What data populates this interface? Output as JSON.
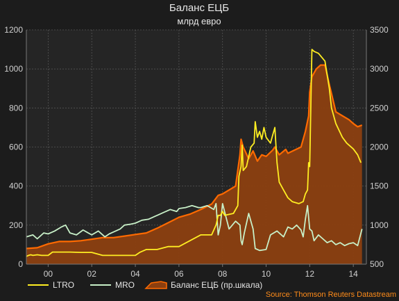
{
  "colors": {
    "background": "#1c1c1c",
    "plot_background": "#252525",
    "ltro": "#ffee22",
    "mro": "#c8f0c8",
    "balance_fill": "#8b3f10",
    "balance_line": "#ff6a00",
    "source": "#ff8c1a"
  },
  "chart_data": {
    "type": "line",
    "title": "Баланс ЕЦБ",
    "subtitle": "млрд евро",
    "source": "Source: Thomson Reuters Datastream",
    "x_tick_labels": [
      "00",
      "02",
      "04",
      "06",
      "08",
      "10",
      "12",
      "14"
    ],
    "x_tick_values": [
      2000,
      2002,
      2004,
      2006,
      2008,
      2010,
      2012,
      2014
    ],
    "xlim": [
      1999,
      2014.6
    ],
    "ylim_left": [
      0,
      1200
    ],
    "y_ticks_left": [
      0,
      200,
      400,
      600,
      800,
      1000,
      1200
    ],
    "ylim_right": [
      500,
      3500
    ],
    "y_ticks_right": [
      500,
      1000,
      1500,
      2000,
      2500,
      3000,
      3500
    ],
    "grid": true,
    "legend_position": "bottom-left",
    "series": [
      {
        "name": "LTRO",
        "axis": "left",
        "type": "line",
        "points": [
          [
            1999.0,
            40
          ],
          [
            1999.1,
            45
          ],
          [
            1999.2,
            48
          ],
          [
            1999.3,
            45
          ],
          [
            1999.5,
            48
          ],
          [
            1999.7,
            45
          ],
          [
            2000.0,
            45
          ],
          [
            2000.2,
            62
          ],
          [
            2000.5,
            62
          ],
          [
            2001.0,
            62
          ],
          [
            2001.5,
            60
          ],
          [
            2002.0,
            60
          ],
          [
            2002.5,
            45
          ],
          [
            2003.0,
            45
          ],
          [
            2003.5,
            45
          ],
          [
            2004.0,
            45
          ],
          [
            2004.2,
            60
          ],
          [
            2004.5,
            75
          ],
          [
            2005.0,
            75
          ],
          [
            2005.5,
            90
          ],
          [
            2006.0,
            90
          ],
          [
            2006.5,
            120
          ],
          [
            2007.0,
            150
          ],
          [
            2007.5,
            150
          ],
          [
            2007.7,
            200
          ],
          [
            2007.8,
            250
          ],
          [
            2007.9,
            250
          ],
          [
            2008.0,
            270
          ],
          [
            2008.1,
            250
          ],
          [
            2008.5,
            260
          ],
          [
            2008.7,
            300
          ],
          [
            2008.75,
            450
          ],
          [
            2008.85,
            500
          ],
          [
            2008.9,
            610
          ],
          [
            2008.95,
            480
          ],
          [
            2009.1,
            500
          ],
          [
            2009.3,
            600
          ],
          [
            2009.45,
            620
          ],
          [
            2009.5,
            730
          ],
          [
            2009.6,
            650
          ],
          [
            2009.7,
            680
          ],
          [
            2009.8,
            640
          ],
          [
            2009.9,
            700
          ],
          [
            2010.0,
            650
          ],
          [
            2010.2,
            620
          ],
          [
            2010.3,
            660
          ],
          [
            2010.4,
            700
          ],
          [
            2010.5,
            520
          ],
          [
            2010.6,
            420
          ],
          [
            2010.8,
            380
          ],
          [
            2011.0,
            340
          ],
          [
            2011.2,
            320
          ],
          [
            2011.5,
            310
          ],
          [
            2011.7,
            320
          ],
          [
            2011.8,
            360
          ],
          [
            2011.9,
            380
          ],
          [
            2011.95,
            520
          ],
          [
            2012.0,
            500
          ],
          [
            2012.1,
            1100
          ],
          [
            2012.2,
            1090
          ],
          [
            2012.4,
            1080
          ],
          [
            2012.7,
            1040
          ],
          [
            2012.9,
            900
          ],
          [
            2013.0,
            800
          ],
          [
            2013.2,
            720
          ],
          [
            2013.5,
            650
          ],
          [
            2013.7,
            620
          ],
          [
            2014.0,
            590
          ],
          [
            2014.2,
            560
          ],
          [
            2014.35,
            520
          ]
        ]
      },
      {
        "name": "MRO",
        "axis": "left",
        "type": "line",
        "points": [
          [
            1999.0,
            140
          ],
          [
            1999.3,
            150
          ],
          [
            1999.5,
            130
          ],
          [
            1999.8,
            160
          ],
          [
            2000.0,
            155
          ],
          [
            2000.3,
            170
          ],
          [
            2000.6,
            190
          ],
          [
            2000.8,
            200
          ],
          [
            2001.0,
            160
          ],
          [
            2001.3,
            150
          ],
          [
            2001.6,
            175
          ],
          [
            2002.0,
            150
          ],
          [
            2002.3,
            170
          ],
          [
            2002.6,
            140
          ],
          [
            2002.8,
            155
          ],
          [
            2003.0,
            165
          ],
          [
            2003.3,
            180
          ],
          [
            2003.5,
            200
          ],
          [
            2003.8,
            205
          ],
          [
            2004.0,
            210
          ],
          [
            2004.3,
            225
          ],
          [
            2004.6,
            230
          ],
          [
            2004.9,
            245
          ],
          [
            2005.0,
            250
          ],
          [
            2005.3,
            265
          ],
          [
            2005.6,
            280
          ],
          [
            2005.9,
            270
          ],
          [
            2006.0,
            285
          ],
          [
            2006.3,
            290
          ],
          [
            2006.6,
            300
          ],
          [
            2006.9,
            290
          ],
          [
            2007.0,
            290
          ],
          [
            2007.3,
            300
          ],
          [
            2007.6,
            280
          ],
          [
            2007.7,
            310
          ],
          [
            2007.8,
            150
          ],
          [
            2007.9,
            200
          ],
          [
            2008.0,
            310
          ],
          [
            2008.3,
            180
          ],
          [
            2008.6,
            220
          ],
          [
            2008.8,
            200
          ],
          [
            2008.85,
            120
          ],
          [
            2008.9,
            100
          ],
          [
            2009.0,
            160
          ],
          [
            2009.2,
            260
          ],
          [
            2009.4,
            180
          ],
          [
            2009.5,
            80
          ],
          [
            2009.7,
            70
          ],
          [
            2010.0,
            75
          ],
          [
            2010.2,
            150
          ],
          [
            2010.5,
            170
          ],
          [
            2010.8,
            140
          ],
          [
            2011.0,
            190
          ],
          [
            2011.2,
            180
          ],
          [
            2011.4,
            200
          ],
          [
            2011.6,
            175
          ],
          [
            2011.7,
            140
          ],
          [
            2011.8,
            230
          ],
          [
            2011.9,
            300
          ],
          [
            2012.0,
            180
          ],
          [
            2012.1,
            170
          ],
          [
            2012.2,
            120
          ],
          [
            2012.4,
            150
          ],
          [
            2012.6,
            130
          ],
          [
            2012.8,
            110
          ],
          [
            2013.0,
            120
          ],
          [
            2013.2,
            100
          ],
          [
            2013.4,
            110
          ],
          [
            2013.6,
            95
          ],
          [
            2013.8,
            105
          ],
          [
            2014.0,
            110
          ],
          [
            2014.2,
            95
          ],
          [
            2014.4,
            180
          ]
        ]
      },
      {
        "name": "Баланс ЕЦБ (пр.шкала)",
        "axis": "right",
        "type": "area",
        "points": [
          [
            1999.0,
            700
          ],
          [
            1999.5,
            710
          ],
          [
            2000.0,
            760
          ],
          [
            2000.5,
            790
          ],
          [
            2001.0,
            790
          ],
          [
            2001.5,
            800
          ],
          [
            2002.0,
            820
          ],
          [
            2002.5,
            840
          ],
          [
            2003.0,
            840
          ],
          [
            2003.5,
            860
          ],
          [
            2004.0,
            880
          ],
          [
            2004.5,
            900
          ],
          [
            2005.0,
            960
          ],
          [
            2005.5,
            1030
          ],
          [
            2006.0,
            1100
          ],
          [
            2006.5,
            1140
          ],
          [
            2007.0,
            1200
          ],
          [
            2007.5,
            1270
          ],
          [
            2007.8,
            1380
          ],
          [
            2008.0,
            1400
          ],
          [
            2008.3,
            1450
          ],
          [
            2008.6,
            1500
          ],
          [
            2008.8,
            1900
          ],
          [
            2008.85,
            2100
          ],
          [
            2008.95,
            2000
          ],
          [
            2009.2,
            1850
          ],
          [
            2009.4,
            1950
          ],
          [
            2009.6,
            1820
          ],
          [
            2009.8,
            1900
          ],
          [
            2010.0,
            1880
          ],
          [
            2010.3,
            1960
          ],
          [
            2010.4,
            2000
          ],
          [
            2010.6,
            1900
          ],
          [
            2010.9,
            1970
          ],
          [
            2011.0,
            1920
          ],
          [
            2011.3,
            1960
          ],
          [
            2011.6,
            2000
          ],
          [
            2011.8,
            2200
          ],
          [
            2011.95,
            2400
          ],
          [
            2012.0,
            2700
          ],
          [
            2012.1,
            2900
          ],
          [
            2012.3,
            3000
          ],
          [
            2012.5,
            3050
          ],
          [
            2012.7,
            3050
          ],
          [
            2012.9,
            2800
          ],
          [
            2013.2,
            2450
          ],
          [
            2013.5,
            2400
          ],
          [
            2013.8,
            2350
          ],
          [
            2014.0,
            2300
          ],
          [
            2014.2,
            2260
          ],
          [
            2014.4,
            2280
          ]
        ]
      }
    ]
  }
}
